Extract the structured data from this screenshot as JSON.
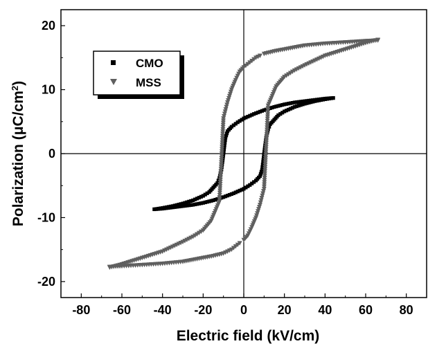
{
  "chart_data": {
    "type": "scatter",
    "xlabel": "Electric field (kV/cm)",
    "ylabel_main": "Polarization (",
    "ylabel_unit": "μC/cm",
    "ylabel_sup": "2",
    "ylabel_close": ")",
    "xlim": [
      -90,
      90
    ],
    "ylim": [
      -22.5,
      22.5
    ],
    "xticks": [
      -80,
      -60,
      -40,
      -20,
      0,
      20,
      40,
      60,
      80
    ],
    "yticks": [
      -20,
      -10,
      0,
      10,
      20
    ],
    "grid": false,
    "zero_lines": true,
    "legend_position": "upper-left",
    "series": [
      {
        "name": "CMO",
        "marker": "square",
        "color": "#000000",
        "branches": [
          {
            "x": [
              -44,
              -40,
              -35,
              -30,
              -25,
              -20,
              -17,
              -15,
              -13,
              -12,
              -11,
              -10.5,
              -10,
              -9.5,
              -9,
              -8,
              -6,
              -3,
              0,
              5,
              10,
              15,
              20,
              25,
              30,
              35,
              40,
              44
            ],
            "y": [
              -8.7,
              -8.5,
              -8.2,
              -7.8,
              -7.3,
              -6.6,
              -6.0,
              -5.3,
              -4.6,
              -3.8,
              -2.5,
              -1.3,
              0.0,
              1.3,
              2.5,
              3.5,
              4.2,
              4.9,
              5.5,
              6.2,
              6.8,
              7.3,
              7.7,
              8.0,
              8.2,
              8.4,
              8.6,
              8.7
            ]
          },
          {
            "x": [
              44,
              40,
              35,
              30,
              25,
              20,
              17,
              15,
              13,
              12,
              11,
              10.5,
              10,
              9.5,
              9,
              8,
              6,
              3,
              0,
              -5,
              -10,
              -15,
              -20,
              -25,
              -30,
              -35,
              -40,
              -44
            ],
            "y": [
              8.7,
              8.5,
              8.2,
              7.8,
              7.3,
              6.6,
              6.0,
              5.3,
              4.6,
              3.8,
              2.5,
              1.3,
              0.0,
              -1.3,
              -2.5,
              -3.5,
              -4.2,
              -4.9,
              -5.5,
              -6.2,
              -6.8,
              -7.3,
              -7.7,
              -8.0,
              -8.2,
              -8.4,
              -8.6,
              -8.7
            ]
          }
        ]
      },
      {
        "name": "MSS",
        "marker": "triangle-down",
        "color": "#5f5f5f",
        "branches": [
          {
            "x": [
              -66,
              -60,
              -50,
              -40,
              -30,
              -25,
              -20,
              -16,
              -14,
              -12,
              -10,
              -8,
              -6,
              -4,
              -2,
              0,
              2,
              4,
              6,
              8
            ],
            "y": [
              -17.8,
              -17.3,
              -16.3,
              -15.3,
              -13.8,
              -13.0,
              -12.0,
              -10.5,
              -9.0,
              -7.5,
              5.5,
              8.0,
              10.0,
              11.5,
              12.8,
              13.5,
              14.0,
              14.5,
              15.0,
              15.3
            ]
          },
          {
            "x": [
              10,
              15,
              20,
              25,
              30,
              40,
              50,
              60,
              66
            ],
            "y": [
              15.6,
              16.0,
              16.3,
              16.6,
              16.9,
              17.2,
              17.4,
              17.6,
              17.7
            ]
          },
          {
            "x": [
              66,
              60,
              50,
              40,
              30,
              25,
              20,
              16,
              14,
              12,
              10,
              8,
              6,
              4,
              2,
              0
            ],
            "y": [
              17.8,
              17.3,
              16.3,
              15.3,
              13.8,
              13.0,
              12.0,
              10.5,
              9.0,
              7.5,
              -5.5,
              -8.0,
              -10.0,
              -11.5,
              -12.8,
              -13.5
            ]
          },
          {
            "x": [
              -2,
              -4,
              -6,
              -8,
              -10,
              -15,
              -20,
              -25,
              -30,
              -40,
              -50,
              -60,
              -66
            ],
            "y": [
              -14.0,
              -14.5,
              -15.0,
              -15.3,
              -15.6,
              -16.0,
              -16.3,
              -16.6,
              -16.9,
              -17.2,
              -17.4,
              -17.6,
              -17.7
            ]
          }
        ]
      }
    ]
  }
}
